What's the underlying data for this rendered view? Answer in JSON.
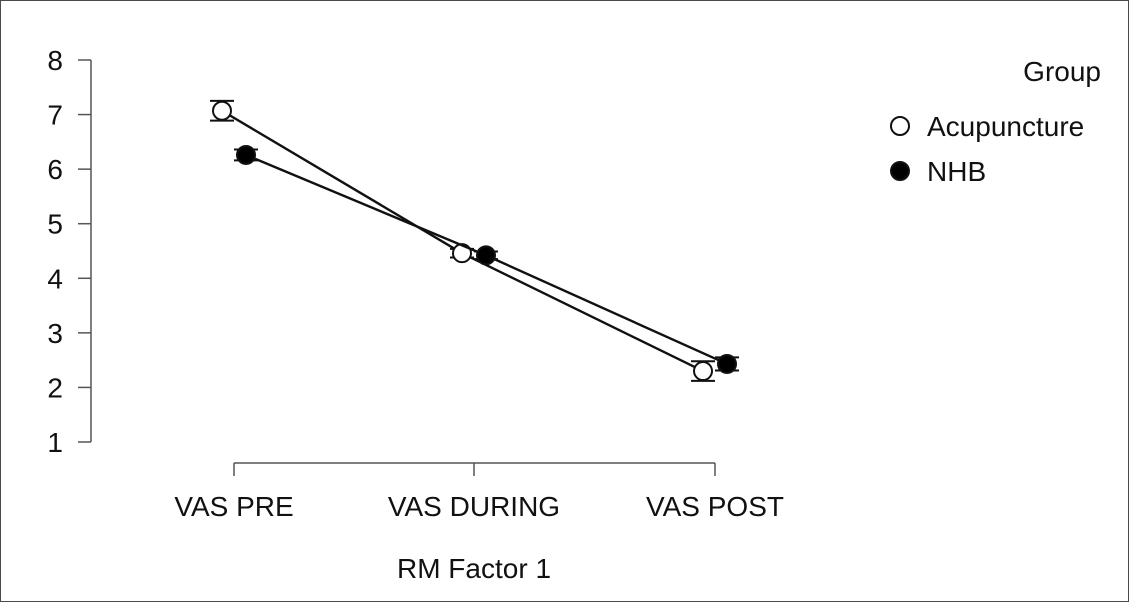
{
  "chart_data": {
    "type": "line",
    "xlabel": "RM Factor 1",
    "ylabel": "",
    "categories": [
      "VAS PRE",
      "VAS DURING",
      "VAS POST"
    ],
    "ylim": [
      1,
      8
    ],
    "yticks": [
      1,
      2,
      3,
      4,
      5,
      6,
      7,
      8
    ],
    "legend": {
      "title": "Group",
      "placement": "top-right"
    },
    "series": [
      {
        "name": "Acupuncture",
        "marker": "open-circle",
        "values": [
          7.07,
          4.46,
          2.3
        ],
        "error": [
          0.18,
          0.08,
          0.18
        ]
      },
      {
        "name": "NHB",
        "marker": "filled-circle",
        "values": [
          6.26,
          4.42,
          2.43
        ],
        "error": [
          0.1,
          0.07,
          0.12
        ]
      }
    ]
  }
}
